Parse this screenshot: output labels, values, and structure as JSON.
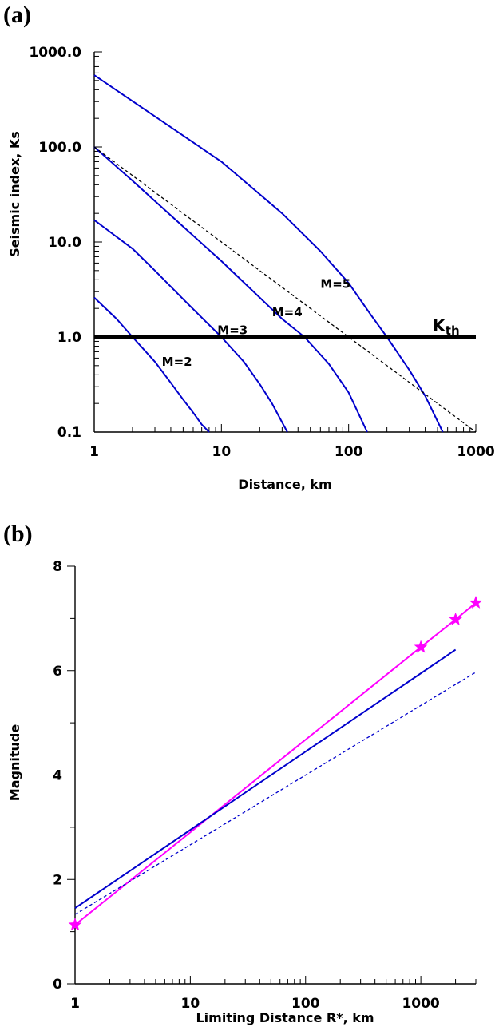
{
  "chart_data": [
    {
      "panel": "(a)",
      "type": "line",
      "xlabel": "Distance, km",
      "ylabel": "Seismic index, Ks",
      "xscale": "log",
      "yscale": "log",
      "xlim": [
        1,
        1000
      ],
      "ylim": [
        0.1,
        1000
      ],
      "xticks": [
        1,
        10,
        100,
        1000
      ],
      "xtick_labels": [
        "1",
        "10",
        "100",
        "1000"
      ],
      "yticks": [
        0.1,
        1,
        10,
        100,
        1000
      ],
      "ytick_labels": [
        "0.1",
        "1.0",
        "10.0",
        "100.0",
        "1000.0"
      ],
      "grid": false,
      "series": [
        {
          "name": "M=2",
          "color": "#0000cc",
          "style": "solid",
          "x": [
            1,
            1.5,
            2,
            3,
            4,
            5,
            6,
            7,
            8
          ],
          "y": [
            2.6,
            1.55,
            1.0,
            0.55,
            0.33,
            0.22,
            0.16,
            0.12,
            0.1
          ]
        },
        {
          "name": "M=3",
          "color": "#0000cc",
          "style": "solid",
          "x": [
            1,
            2,
            3,
            5,
            7,
            10,
            15,
            20,
            25,
            33
          ],
          "y": [
            17,
            8.5,
            5.0,
            2.5,
            1.6,
            1.0,
            0.55,
            0.32,
            0.2,
            0.1
          ]
        },
        {
          "name": "M=4",
          "color": "#0000cc",
          "style": "solid",
          "x": [
            1,
            2,
            3,
            5,
            10,
            20,
            30,
            45,
            70,
            100,
            140
          ],
          "y": [
            100,
            44,
            27,
            14.5,
            6.3,
            2.6,
            1.55,
            1.0,
            0.52,
            0.26,
            0.1
          ]
        },
        {
          "name": "M=5",
          "color": "#0000cc",
          "style": "solid",
          "x": [
            1,
            3,
            10,
            30,
            60,
            100,
            150,
            200,
            300,
            400,
            550
          ],
          "y": [
            570,
            210,
            70,
            20,
            8,
            3.7,
            1.7,
            1.0,
            0.45,
            0.24,
            0.1
          ]
        },
        {
          "name": "",
          "color": "#000000",
          "style": "dashed",
          "x": [
            1,
            1000
          ],
          "y": [
            100,
            0.1
          ]
        },
        {
          "name": "Kth",
          "color": "#000000",
          "style": "thick",
          "x": [
            1,
            1000
          ],
          "y": [
            1,
            1
          ]
        }
      ],
      "annotations": [
        {
          "text": "M=5",
          "x": 60,
          "y": 3.3
        },
        {
          "text": "M=4",
          "x": 25,
          "y": 1.65
        },
        {
          "text": "M=3",
          "x": 9.3,
          "y": 1.07
        },
        {
          "text": "M=2",
          "x": 3.4,
          "y": 0.5
        },
        {
          "text": "K",
          "sub": "th",
          "x": 455,
          "y": 1.15
        }
      ]
    },
    {
      "panel": "(b)",
      "type": "line",
      "xlabel": "Limiting Distance R*, km",
      "ylabel": "Magnitude",
      "xscale": "log",
      "yscale": "linear",
      "xlim": [
        1,
        3000
      ],
      "ylim": [
        0,
        8
      ],
      "xticks": [
        1,
        10,
        100,
        1000
      ],
      "xtick_labels": [
        "1",
        "10",
        "100",
        "1000"
      ],
      "yticks": [
        0,
        2,
        4,
        6,
        8
      ],
      "ytick_labels": [
        "0",
        "2",
        "4",
        "6",
        "8"
      ],
      "grid": false,
      "series": [
        {
          "name": "",
          "color": "#ff00ff",
          "style": "solid",
          "marker": "star",
          "x": [
            1,
            1000,
            2000,
            3000
          ],
          "y": [
            1.13,
            6.45,
            6.98,
            7.3
          ]
        },
        {
          "name": "",
          "color": "#0000cc",
          "style": "solid",
          "x": [
            1,
            2000
          ],
          "y": [
            1.45,
            6.4
          ]
        },
        {
          "name": "",
          "color": "#0000cc",
          "style": "dashed",
          "x": [
            1,
            3000
          ],
          "y": [
            1.33,
            5.97
          ]
        }
      ]
    }
  ]
}
